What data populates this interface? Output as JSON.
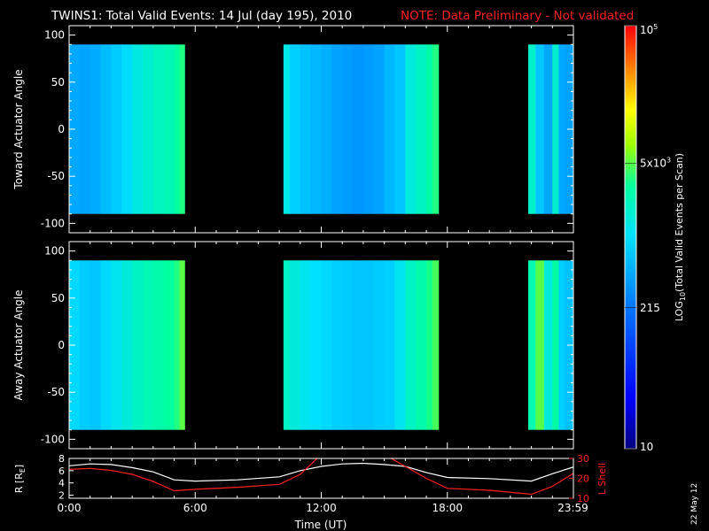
{
  "title": {
    "main": "TWINS1: Total Valid Events: 14 Jul (day 195), 2010",
    "note": "NOTE: Data Preliminary - Not validated"
  },
  "footer_date": "22 May 12",
  "colors": {
    "red": "#ff2020",
    "white": "#ffffff",
    "background": "#000000"
  },
  "chart_data": [
    {
      "type": "heatmap",
      "title": "",
      "ylabel": "Toward Actuator Angle",
      "xlabel": "",
      "ylim": [
        -110,
        110
      ],
      "yticks": [
        "100",
        "50",
        "0",
        "-50",
        "-100"
      ],
      "ytick_values": [
        100,
        50,
        0,
        -50,
        -100
      ],
      "data_ylim": [
        -90,
        90
      ],
      "segments": [
        {
          "start": "00:00",
          "end": "05:30"
        },
        {
          "start": "10:10",
          "end": "17:35"
        },
        {
          "start": "21:50",
          "end": "23:59"
        }
      ],
      "columns": [
        {
          "t": 0.0,
          "v": 450
        },
        {
          "t": 0.5,
          "v": 430
        },
        {
          "t": 1.0,
          "v": 470
        },
        {
          "t": 1.5,
          "v": 600
        },
        {
          "t": 2.0,
          "v": 750
        },
        {
          "t": 2.5,
          "v": 950
        },
        {
          "t": 3.0,
          "v": 1400
        },
        {
          "t": 3.5,
          "v": 1700
        },
        {
          "t": 4.0,
          "v": 2100
        },
        {
          "t": 4.5,
          "v": 2400
        },
        {
          "t": 5.0,
          "v": 2900
        },
        {
          "t": 5.25,
          "v": 3600
        },
        {
          "t": 10.2,
          "v": 1300
        },
        {
          "t": 10.5,
          "v": 800
        },
        {
          "t": 11.0,
          "v": 650
        },
        {
          "t": 11.5,
          "v": 560
        },
        {
          "t": 12.0,
          "v": 500
        },
        {
          "t": 12.5,
          "v": 420
        },
        {
          "t": 13.0,
          "v": 380
        },
        {
          "t": 13.5,
          "v": 350
        },
        {
          "t": 14.0,
          "v": 380
        },
        {
          "t": 14.5,
          "v": 420
        },
        {
          "t": 15.0,
          "v": 560
        },
        {
          "t": 15.5,
          "v": 700
        },
        {
          "t": 16.0,
          "v": 1500
        },
        {
          "t": 16.5,
          "v": 2000
        },
        {
          "t": 17.0,
          "v": 2800
        },
        {
          "t": 17.3,
          "v": 3600
        },
        {
          "t": 21.85,
          "v": 1800
        },
        {
          "t": 22.2,
          "v": 700
        },
        {
          "t": 22.6,
          "v": 450
        },
        {
          "t": 23.0,
          "v": 1700
        },
        {
          "t": 23.3,
          "v": 450
        },
        {
          "t": 23.6,
          "v": 420
        }
      ]
    },
    {
      "type": "heatmap",
      "title": "",
      "ylabel": "Away Actuator Angle",
      "xlabel": "",
      "ylim": [
        -110,
        110
      ],
      "yticks": [
        "100",
        "50",
        "0",
        "-50",
        "-100"
      ],
      "ytick_values": [
        100,
        50,
        0,
        -50,
        -100
      ],
      "data_ylim": [
        -90,
        90
      ],
      "segments": [
        {
          "start": "00:00",
          "end": "05:30"
        },
        {
          "start": "10:10",
          "end": "17:35"
        },
        {
          "start": "21:50",
          "end": "23:59"
        }
      ],
      "columns": [
        {
          "t": 0.0,
          "v": 900
        },
        {
          "t": 0.5,
          "v": 750
        },
        {
          "t": 1.0,
          "v": 700
        },
        {
          "t": 1.5,
          "v": 900
        },
        {
          "t": 2.0,
          "v": 1200
        },
        {
          "t": 2.5,
          "v": 1500
        },
        {
          "t": 3.0,
          "v": 2000
        },
        {
          "t": 3.5,
          "v": 2400
        },
        {
          "t": 4.0,
          "v": 2700
        },
        {
          "t": 4.5,
          "v": 3000
        },
        {
          "t": 5.0,
          "v": 3600
        },
        {
          "t": 5.25,
          "v": 5000
        },
        {
          "t": 10.2,
          "v": 2000
        },
        {
          "t": 10.5,
          "v": 1500
        },
        {
          "t": 11.0,
          "v": 1200
        },
        {
          "t": 11.5,
          "v": 1000
        },
        {
          "t": 12.0,
          "v": 900
        },
        {
          "t": 12.5,
          "v": 800
        },
        {
          "t": 13.0,
          "v": 750
        },
        {
          "t": 13.5,
          "v": 700
        },
        {
          "t": 14.0,
          "v": 700
        },
        {
          "t": 14.5,
          "v": 750
        },
        {
          "t": 15.0,
          "v": 800
        },
        {
          "t": 15.5,
          "v": 1200
        },
        {
          "t": 16.0,
          "v": 2000
        },
        {
          "t": 16.5,
          "v": 2600
        },
        {
          "t": 17.0,
          "v": 3400
        },
        {
          "t": 17.3,
          "v": 4500
        },
        {
          "t": 21.85,
          "v": 2500
        },
        {
          "t": 22.2,
          "v": 5000
        },
        {
          "t": 22.6,
          "v": 1500
        },
        {
          "t": 23.0,
          "v": 2800
        },
        {
          "t": 23.3,
          "v": 800
        },
        {
          "t": 23.6,
          "v": 650
        }
      ]
    },
    {
      "type": "line",
      "title": "",
      "xlabel": "Time (UT)",
      "ylabel": "R [R",
      "ylabel_sub": "E",
      "ylabel_end": "]",
      "ylim": [
        1.5,
        8
      ],
      "yticks": [
        "8",
        "6",
        "4",
        "2"
      ],
      "ytick_values": [
        8,
        6,
        4,
        2
      ],
      "y2label": "L Shell",
      "y2lim": [
        10,
        30
      ],
      "y2ticks": [
        "30",
        "20",
        "10"
      ],
      "y2tick_values": [
        30,
        20,
        10
      ],
      "xlim": [
        0,
        24
      ],
      "xticks": [
        "0:00",
        "6:00",
        "12:00",
        "18:00",
        "23:59"
      ],
      "xtick_values": [
        0,
        6,
        12,
        18,
        23.98
      ],
      "series": [
        {
          "name": "R",
          "axis": "left",
          "color": "#ffffff",
          "x": [
            0,
            1.0,
            2.0,
            3.0,
            4.0,
            5.0,
            6.0,
            8.0,
            10.0,
            11.0,
            12.0,
            13.0,
            14.0,
            15.0,
            16.0,
            17.0,
            18.0,
            20.0,
            22.0,
            23.0,
            24.0
          ],
          "y": [
            6.8,
            7.1,
            7.0,
            6.5,
            5.8,
            4.5,
            4.3,
            4.5,
            5.0,
            6.0,
            6.7,
            7.1,
            7.2,
            7.0,
            6.7,
            5.7,
            4.9,
            4.7,
            4.3,
            5.5,
            6.6
          ]
        },
        {
          "name": "L Shell",
          "axis": "right",
          "color": "#ff2020",
          "x": [
            0,
            1.0,
            2.0,
            3.0,
            4.0,
            5.0,
            6.0,
            8.0,
            10.0,
            11.0,
            12.0,
            13.0,
            14.0,
            15.0,
            16.0,
            17.0,
            18.0,
            20.0,
            22.0,
            23.0,
            24.0
          ],
          "y": [
            24.5,
            25.0,
            24.0,
            22.0,
            18.5,
            13.8,
            14.5,
            15.5,
            17.0,
            22.0,
            32.0,
            35.0,
            35.0,
            32.0,
            26.0,
            20.0,
            15.0,
            14.0,
            12.0,
            16.0,
            22.5
          ]
        }
      ]
    }
  ],
  "colorbar": {
    "label_prefix": "LOG",
    "label_sub": "10",
    "label_rest": "(Total Valid Events per Scan)",
    "range": [
      10,
      100000
    ],
    "ticks": [
      {
        "value": 100000,
        "base": "10",
        "sup": "5"
      },
      {
        "value": 5000,
        "base": "5x10",
        "sup": "3"
      },
      {
        "value": 215,
        "base": "215",
        "sup": ""
      },
      {
        "value": 10,
        "base": "10",
        "sup": ""
      }
    ]
  }
}
